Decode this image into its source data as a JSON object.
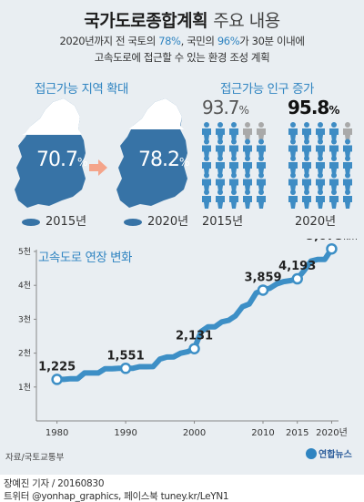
{
  "title": {
    "main": "국가도로종합계획",
    "light": "주요 내용"
  },
  "subtitle": {
    "line1_a": "2020년까지 전 국토의 ",
    "line1_hl1": "78%",
    "line1_b": ", 국민의 ",
    "line1_hl2": "96%",
    "line1_c": "가 30분 이내에",
    "line2": "고속도로에 접근할 수 있는 환경 조성 계획"
  },
  "area": {
    "label": "접근가능 지역 확대",
    "y1_pct": "70.7",
    "y2_pct": "78.2",
    "y1_value": 70.7,
    "y2_value": 78.2,
    "unit": "%",
    "y1_year": "2015년",
    "y2_year": "2020년"
  },
  "population": {
    "label": "접근가능 인구 증가",
    "y1_pct": "93.7",
    "y2_pct": "95.8",
    "y1_value": 93.7,
    "y2_value": 95.8,
    "unit": "%",
    "y1_year": "2015년",
    "y2_year": "2020년"
  },
  "chart_label": "고속도로 연장 변화",
  "chart_data": {
    "type": "line",
    "ylabel": "",
    "xlabel": "",
    "ylim": [
      0,
      5000
    ],
    "xlim": [
      1977,
      2021
    ],
    "y_ticks": [
      {
        "value": 1000,
        "label": "1천"
      },
      {
        "value": 2000,
        "label": "2천"
      },
      {
        "value": 3000,
        "label": "3천"
      },
      {
        "value": 4000,
        "label": "4천"
      },
      {
        "value": 5000,
        "label": "5천"
      }
    ],
    "x_ticks": [
      {
        "value": 1980,
        "label": "1980"
      },
      {
        "value": 1990,
        "label": "1990"
      },
      {
        "value": 2000,
        "label": "2000"
      },
      {
        "value": 2010,
        "label": "2010"
      },
      {
        "value": 2015,
        "label": "2015"
      },
      {
        "value": 2020,
        "label": "2020년"
      }
    ],
    "x": [
      1980,
      1981,
      1982,
      1983,
      1984,
      1985,
      1986,
      1987,
      1988,
      1989,
      1990,
      1991,
      1992,
      1993,
      1994,
      1995,
      1996,
      1997,
      1998,
      1999,
      2000,
      2001,
      2002,
      2003,
      2004,
      2005,
      2006,
      2007,
      2008,
      2009,
      2010,
      2011,
      2012,
      2013,
      2014,
      2015,
      2016,
      2017,
      2018,
      2019,
      2020
    ],
    "values": [
      1225,
      1225,
      1245,
      1245,
      1415,
      1415,
      1415,
      1539,
      1539,
      1551,
      1551,
      1551,
      1600,
      1600,
      1602,
      1825,
      1885,
      1889,
      1996,
      2040,
      2131,
      2637,
      2778,
      2778,
      2923,
      2968,
      3102,
      3368,
      3448,
      3776,
      3859,
      3913,
      4044,
      4111,
      4139,
      4193,
      4438,
      4717,
      4767,
      4767,
      5075
    ],
    "annotations": [
      {
        "x": 1980,
        "y": 1225,
        "label": "1,225"
      },
      {
        "x": 1990,
        "y": 1551,
        "label": "1,551"
      },
      {
        "x": 2000,
        "y": 2131,
        "label": "2,131"
      },
      {
        "x": 2010,
        "y": 3859,
        "label": "3,859"
      },
      {
        "x": 2015,
        "y": 4193,
        "label": "4,193"
      },
      {
        "x": 2020,
        "y": 5075,
        "label": "5,075",
        "unit": "km"
      }
    ],
    "grid": false,
    "color": "#3d8fc6"
  },
  "source": "자료/국토교통부",
  "logo": "연합뉴스",
  "credit": "장예진 기자 / 20160830",
  "social": "트위터 @yonhap_graphics, 페이스북 tuney.kr/LeYN1",
  "colors": {
    "accent": "#2f84c1",
    "map_dark": "#3773a6",
    "map_light": "#ffffff",
    "person_blue": "#3e8cc4",
    "person_gray": "#a9a9a9",
    "background": "#e9eef2"
  }
}
